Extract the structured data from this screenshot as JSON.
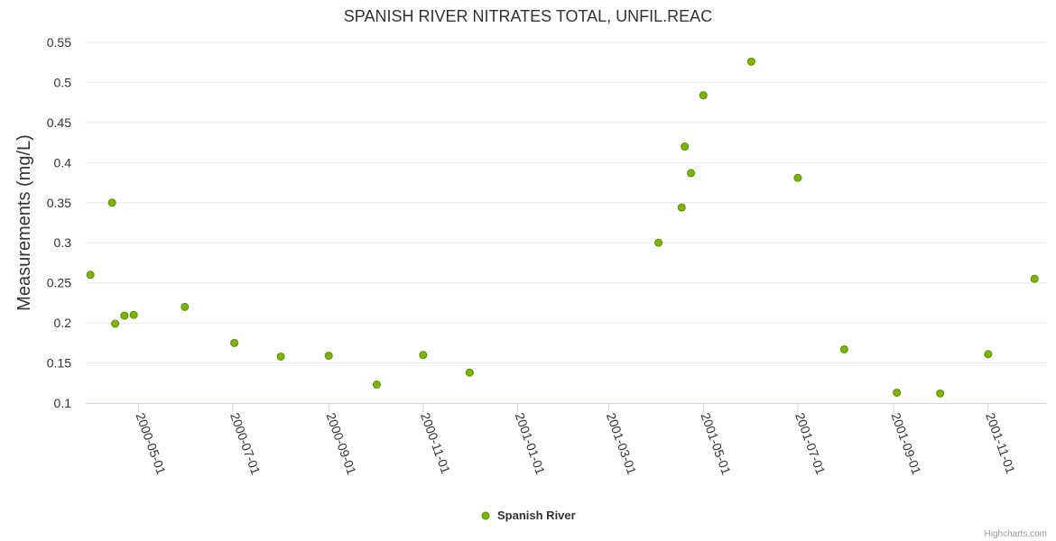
{
  "chart_data": {
    "type": "scatter",
    "title": "SPANISH RIVER NITRATES TOTAL, UNFIL.REAC",
    "xlabel": "",
    "ylabel": "Measurements (mg/L)",
    "ylim": [
      0.1,
      0.55
    ],
    "yticks": [
      "0.1",
      "0.15",
      "0.2",
      "0.25",
      "0.3",
      "0.35",
      "0.4",
      "0.45",
      "0.5",
      "0.55"
    ],
    "xlim": [
      "2000-03-28",
      "2001-12-09"
    ],
    "xticks": [
      "2000-05-01",
      "2000-07-01",
      "2000-09-01",
      "2000-11-01",
      "2001-01-01",
      "2001-03-01",
      "2001-05-01",
      "2001-07-01",
      "2001-09-01",
      "2001-11-01"
    ],
    "grid": true,
    "legend_position": "bottom-center",
    "series": [
      {
        "name": "Spanish River",
        "color": "#7cb500",
        "points": [
          {
            "x": "2000-03-31",
            "y": 0.26
          },
          {
            "x": "2000-04-14",
            "y": 0.35
          },
          {
            "x": "2000-04-16",
            "y": 0.199
          },
          {
            "x": "2000-04-22",
            "y": 0.209
          },
          {
            "x": "2000-04-28",
            "y": 0.21
          },
          {
            "x": "2000-05-31",
            "y": 0.22
          },
          {
            "x": "2000-07-02",
            "y": 0.175
          },
          {
            "x": "2000-08-01",
            "y": 0.158
          },
          {
            "x": "2000-09-01",
            "y": 0.159
          },
          {
            "x": "2000-10-02",
            "y": 0.123
          },
          {
            "x": "2000-11-01",
            "y": 0.16
          },
          {
            "x": "2000-12-01",
            "y": 0.138
          },
          {
            "x": "2001-04-02",
            "y": 0.3
          },
          {
            "x": "2001-04-17",
            "y": 0.344
          },
          {
            "x": "2001-04-19",
            "y": 0.42
          },
          {
            "x": "2001-04-23",
            "y": 0.387
          },
          {
            "x": "2001-05-01",
            "y": 0.484
          },
          {
            "x": "2001-06-01",
            "y": 0.526
          },
          {
            "x": "2001-07-01",
            "y": 0.381
          },
          {
            "x": "2001-07-31",
            "y": 0.167
          },
          {
            "x": "2001-09-03",
            "y": 0.113
          },
          {
            "x": "2001-10-01",
            "y": 0.112
          },
          {
            "x": "2001-11-01",
            "y": 0.161
          },
          {
            "x": "2001-12-01",
            "y": 0.255
          }
        ]
      }
    ]
  },
  "credits": "Highcharts.com"
}
